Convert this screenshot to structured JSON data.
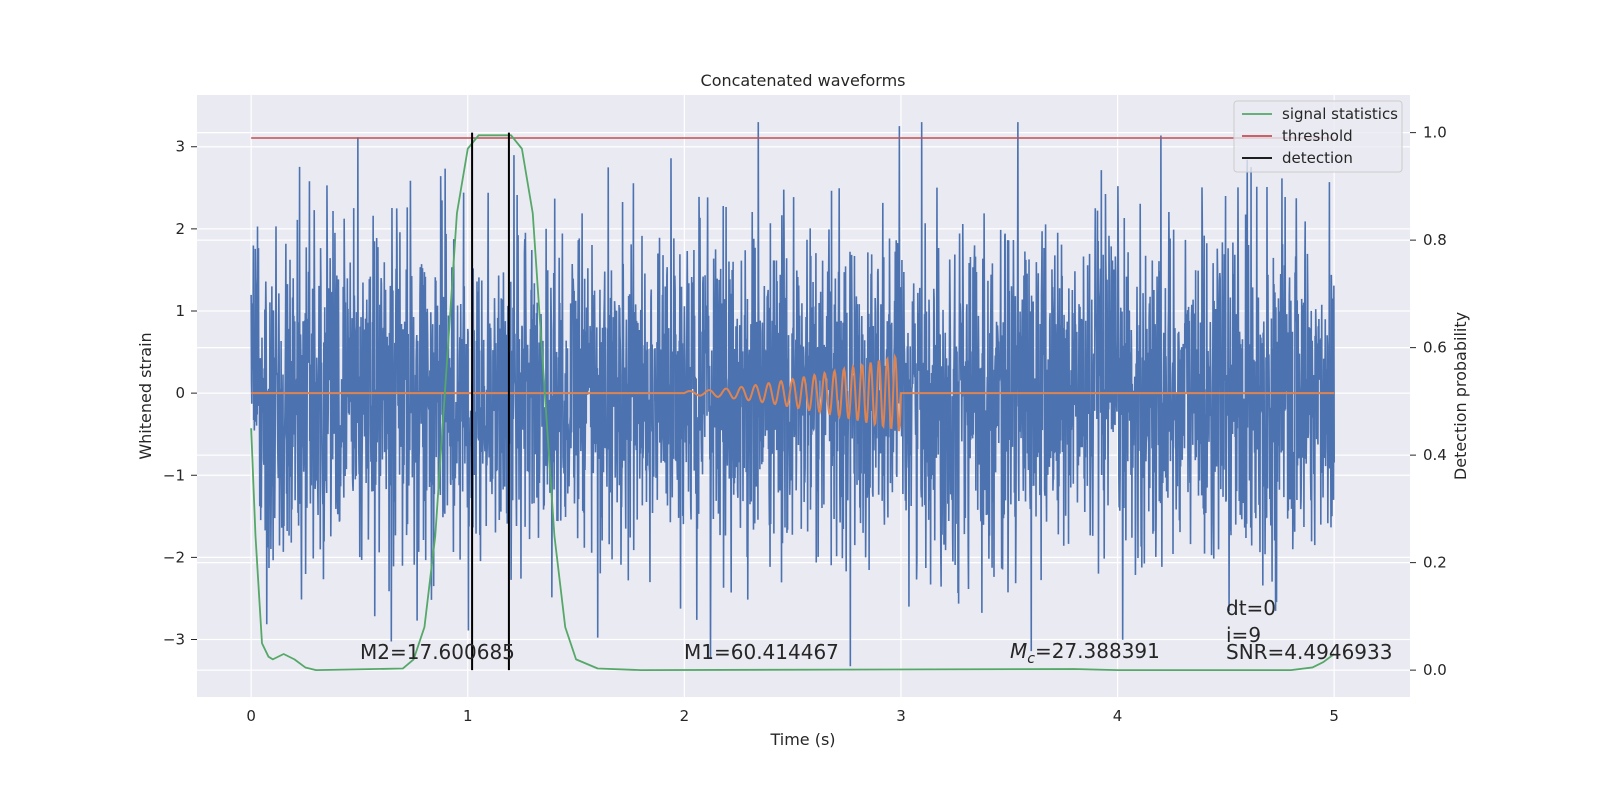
{
  "chart_data": {
    "type": "line",
    "title": "Concatenated waveforms",
    "xlabel": "Time (s)",
    "ylabel_left": "Whitened strain",
    "ylabel_right": "Detection probability",
    "xlim": [
      -0.25,
      5.35
    ],
    "ylim_left": [
      -3.7,
      3.63
    ],
    "ylim_right": [
      -0.05,
      1.07
    ],
    "x_ticks": [
      0,
      1,
      2,
      3,
      4,
      5
    ],
    "x_tick_labels": [
      "0",
      "1",
      "2",
      "3",
      "4",
      "5"
    ],
    "y_left_ticks": [
      -3,
      -2,
      -1,
      0,
      1,
      2,
      3
    ],
    "y_left_tick_labels": [
      "−3",
      "−2",
      "−1",
      "0",
      "1",
      "2",
      "3"
    ],
    "y_right_ticks": [
      0.0,
      0.2,
      0.4,
      0.6,
      0.8,
      1.0
    ],
    "y_right_tick_labels": [
      "0.0",
      "0.2",
      "0.4",
      "0.6",
      "0.8",
      "1.0"
    ],
    "grid": true,
    "legend_placement": "top-right",
    "series": [
      {
        "key": "strain",
        "axis": "left",
        "color": "#4c72b0",
        "description_range": [
          0,
          5
        ],
        "approx_amplitude": 1.0
      },
      {
        "key": "template",
        "axis": "left",
        "color": "#dd8452",
        "x_range": [
          0,
          5
        ],
        "chirp_range": [
          2,
          3
        ],
        "chirp_peak_amplitude": 0.47
      },
      {
        "key": "signal_statistics",
        "name": "signal statistics",
        "axis": "right",
        "color": "#55a868",
        "points": [
          [
            0,
            0.45
          ],
          [
            0.02,
            0.25
          ],
          [
            0.05,
            0.05
          ],
          [
            0.08,
            0.025
          ],
          [
            0.1,
            0.02
          ],
          [
            0.15,
            0.03
          ],
          [
            0.2,
            0.02
          ],
          [
            0.25,
            0.005
          ],
          [
            0.3,
            0.0
          ],
          [
            0.7,
            0.003
          ],
          [
            0.75,
            0.02
          ],
          [
            0.8,
            0.08
          ],
          [
            0.85,
            0.25
          ],
          [
            0.9,
            0.55
          ],
          [
            0.95,
            0.85
          ],
          [
            1.0,
            0.97
          ],
          [
            1.05,
            0.995
          ],
          [
            1.2,
            0.995
          ],
          [
            1.25,
            0.97
          ],
          [
            1.3,
            0.85
          ],
          [
            1.35,
            0.55
          ],
          [
            1.4,
            0.25
          ],
          [
            1.45,
            0.08
          ],
          [
            1.5,
            0.02
          ],
          [
            1.6,
            0.003
          ],
          [
            1.8,
            0.0
          ],
          [
            3.8,
            0.002
          ],
          [
            4.0,
            0.0
          ],
          [
            4.8,
            0.0
          ],
          [
            4.9,
            0.005
          ],
          [
            4.95,
            0.015
          ],
          [
            5.0,
            0.03
          ]
        ]
      },
      {
        "key": "threshold",
        "name": "threshold",
        "axis": "right",
        "color": "#c44e52",
        "x": [
          0,
          5
        ],
        "value": 0.99
      },
      {
        "key": "detection",
        "name": "detection",
        "axis": "right",
        "color": "#000000",
        "x_values": [
          1.02,
          1.19
        ],
        "y_range": [
          0,
          1.0
        ]
      }
    ],
    "legend": [
      {
        "name": "signal statistics",
        "color": "#55a868"
      },
      {
        "name": "threshold",
        "color": "#c44e52"
      },
      {
        "name": "detection",
        "color": "#000000"
      }
    ],
    "annotations": {
      "m2": "M2=17.600685",
      "m1": "M1=60.414467",
      "mc_symbol": "M",
      "mc_sub": "c",
      "mc_value": "=27.388391",
      "dt": "dt=0",
      "i": "i=9",
      "snr": "SNR=4.4946933"
    }
  }
}
